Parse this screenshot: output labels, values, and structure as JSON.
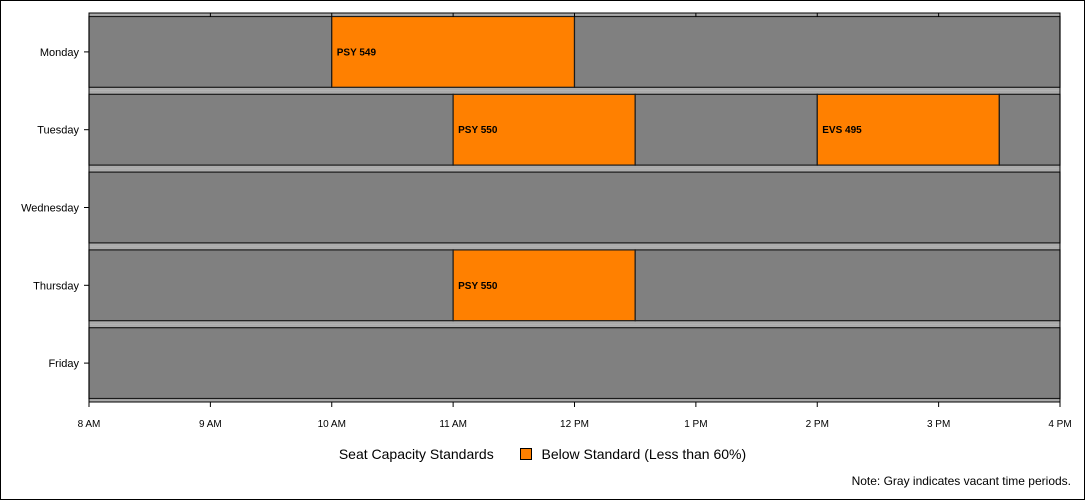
{
  "chart_data": {
    "type": "gantt",
    "x_ticks": [
      "8 AM",
      "9 AM",
      "10 AM",
      "11 AM",
      "12 PM",
      "1 PM",
      "2 PM",
      "3 PM",
      "4 PM"
    ],
    "xlim": [
      8,
      16
    ],
    "days": [
      {
        "name": "Monday",
        "segments": [
          {
            "start": 8,
            "end": 10,
            "status": "vacant",
            "label": ""
          },
          {
            "start": 10,
            "end": 12,
            "status": "below",
            "label": "PSY 549"
          },
          {
            "start": 12,
            "end": 16,
            "status": "vacant",
            "label": ""
          }
        ]
      },
      {
        "name": "Tuesday",
        "segments": [
          {
            "start": 8,
            "end": 11,
            "status": "vacant",
            "label": ""
          },
          {
            "start": 11,
            "end": 12.5,
            "status": "below",
            "label": "PSY 550"
          },
          {
            "start": 12.5,
            "end": 14,
            "status": "vacant",
            "label": ""
          },
          {
            "start": 14,
            "end": 15.5,
            "status": "below",
            "label": "EVS 495"
          },
          {
            "start": 15.5,
            "end": 16,
            "status": "vacant",
            "label": ""
          }
        ]
      },
      {
        "name": "Wednesday",
        "segments": [
          {
            "start": 8,
            "end": 16,
            "status": "vacant",
            "label": ""
          }
        ]
      },
      {
        "name": "Thursday",
        "segments": [
          {
            "start": 8,
            "end": 11,
            "status": "vacant",
            "label": ""
          },
          {
            "start": 11,
            "end": 12.5,
            "status": "below",
            "label": "PSY 550"
          },
          {
            "start": 12.5,
            "end": 16,
            "status": "vacant",
            "label": ""
          }
        ]
      },
      {
        "name": "Friday",
        "segments": [
          {
            "start": 8,
            "end": 16,
            "status": "vacant",
            "label": ""
          }
        ]
      }
    ],
    "legend": {
      "title": "Seat Capacity Standards",
      "entries": [
        {
          "label": "Below Standard (Less than 60%)",
          "color": "#ff8000"
        }
      ],
      "placement": "bottom-center"
    },
    "note": "Note: Gray indicates vacant time periods.",
    "colors": {
      "vacant": "#808080",
      "below": "#ff8000",
      "row_band": "#e8e8e8",
      "border": "#000000"
    }
  }
}
